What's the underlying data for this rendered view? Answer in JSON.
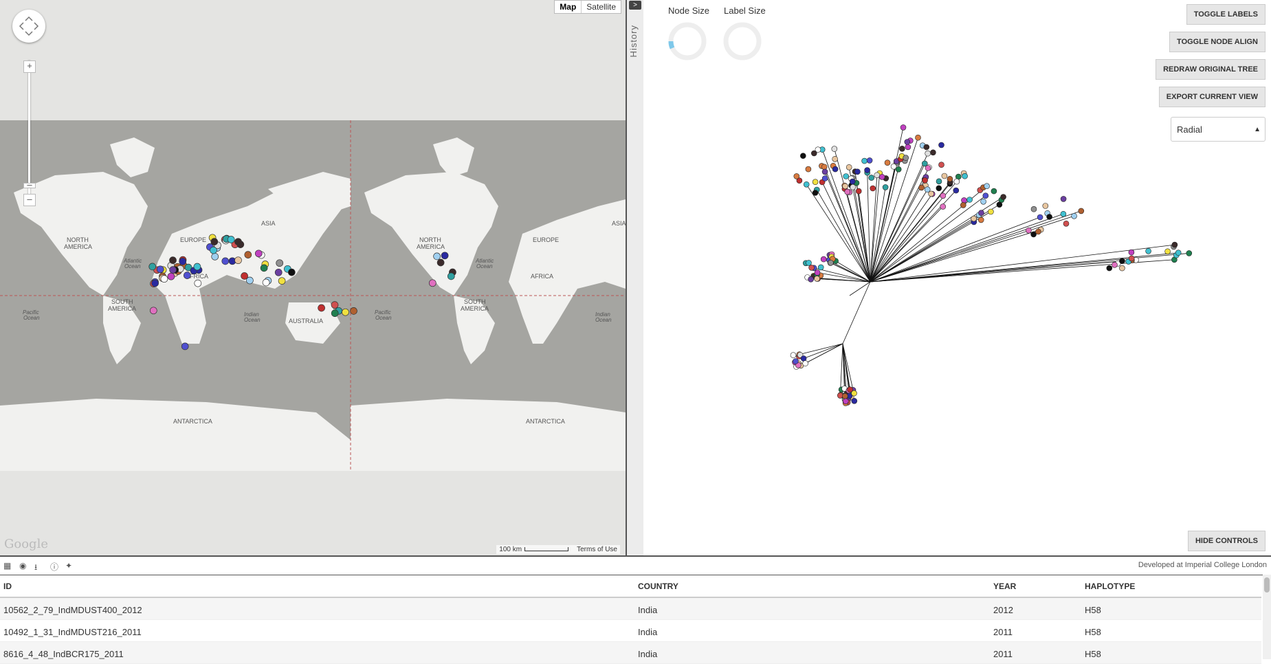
{
  "map": {
    "type_buttons": [
      "Map",
      "Satellite"
    ],
    "labels": {
      "north_america": "NORTH\nAMERICA",
      "south_america": "SOUTH\nAMERICA",
      "europe": "EUROPE",
      "africa": "AFRICA",
      "asia": "ASIA",
      "australia": "AUSTRALIA",
      "antarctica": "ANTARCTICA",
      "atlantic": "Atlantic\nOcean",
      "pacific": "Pacific\nOcean",
      "indian": "Indian\nOcean"
    },
    "attribution": "Google",
    "scale_label": "100 km",
    "terms": "Terms of Use",
    "sample_colors": [
      "#3b2b2b",
      "#d87b40",
      "#e8c6a0",
      "#b06030",
      "#2a2aa0",
      "#6b3fa0",
      "#e070c0",
      "#30a0a0",
      "#40c0d0",
      "#c03030",
      "#f0e040",
      "#5050d0",
      "#c040c0",
      "#a0d0f0",
      "#208050",
      "#e0e0e0",
      "#101010",
      "#ffffff",
      "#909090",
      "#d05050"
    ]
  },
  "history": {
    "label": "History",
    "toggle": ">"
  },
  "tree_controls": {
    "node_size_label": "Node Size",
    "label_size_label": "Label Size",
    "toggle_labels": "TOGGLE LABELS",
    "toggle_node_align": "TOGGLE NODE ALIGN",
    "redraw_original_tree": "REDRAW ORIGINAL TREE",
    "export_current_view": "EXPORT CURRENT VIEW",
    "layout_select": "Radial",
    "hide_controls": "HIDE CONTROLS"
  },
  "bottom_bar": {
    "icons": [
      "table-icon",
      "eye-icon",
      "download-icon",
      "info-icon",
      "twitter-icon"
    ],
    "credit": "Developed at Imperial College London"
  },
  "table": {
    "headers": [
      "ID",
      "COUNTRY",
      "YEAR",
      "HAPLOTYPE"
    ],
    "rows": [
      [
        "10562_2_79_IndMDUST400_2012",
        "India",
        "2012",
        "H58"
      ],
      [
        "10492_1_31_IndMDUST216_2011",
        "India",
        "2011",
        "H58"
      ],
      [
        "8616_4_48_IndBCR175_2011",
        "India",
        "2011",
        "H58"
      ]
    ]
  }
}
